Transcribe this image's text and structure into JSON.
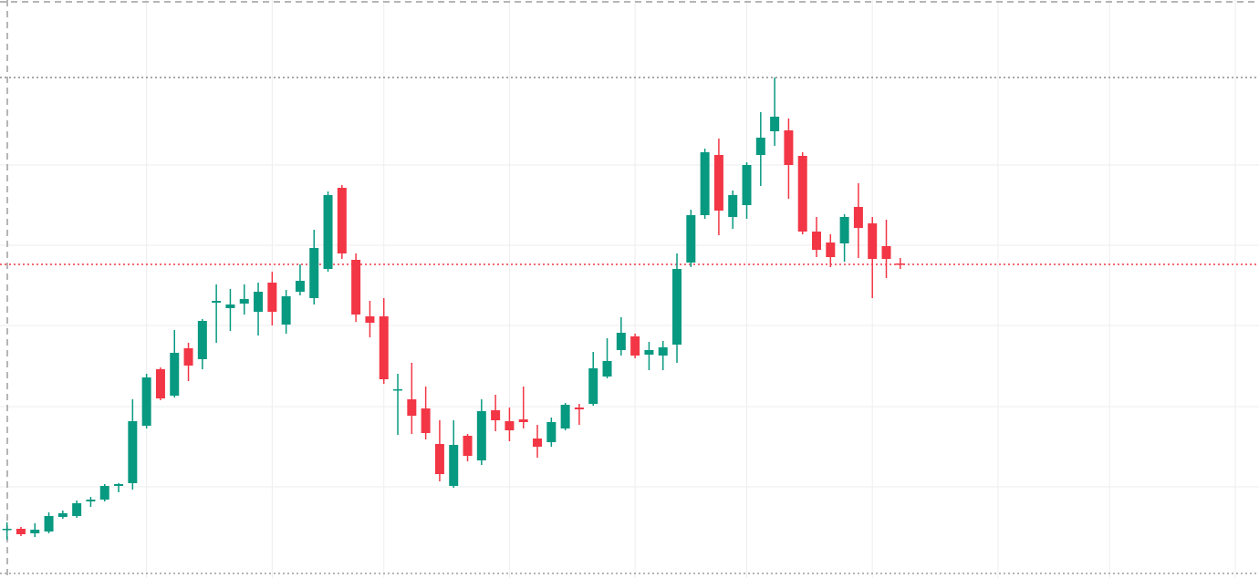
{
  "chart_data": {
    "type": "candlestick",
    "up_color": "#089981",
    "down_color": "#f23645",
    "open": [
      54,
      54,
      49,
      51,
      67,
      68,
      84,
      86,
      101,
      104,
      167,
      229,
      200,
      252,
      240,
      302,
      296,
      301,
      292,
      324,
      278,
      314,
      307,
      339,
      428,
      349,
      287,
      287,
      207,
      196,
      186,
      147,
      101,
      156,
      129,
      184,
      172,
      174,
      153,
      149,
      164,
      187,
      191,
      221,
      250,
      265,
      245,
      244,
      256,
      346,
      398,
      464,
      396,
      409,
      464,
      490,
      491,
      463,
      380,
      368,
      367,
      407,
      389,
      364,
      345
    ],
    "high": [
      61,
      56,
      60,
      72,
      74,
      85,
      89,
      103,
      104,
      196,
      224,
      231,
      272,
      258,
      284,
      322,
      317,
      322,
      324,
      336,
      316,
      344,
      382,
      424,
      431,
      356,
      304,
      307,
      224,
      236,
      210,
      173,
      173,
      158,
      196,
      201,
      187,
      210,
      168,
      176,
      192,
      191,
      248,
      263,
      286,
      268,
      259,
      260,
      356,
      404,
      471,
      482,
      425,
      456,
      511,
      549,
      504,
      467,
      396,
      377,
      399,
      433,
      396,
      393,
      351
    ],
    "low": [
      42,
      46,
      45,
      49,
      65,
      66,
      78,
      84,
      94,
      97,
      164,
      195,
      198,
      216,
      229,
      258,
      271,
      289,
      266,
      277,
      268,
      310,
      300,
      336,
      350,
      281,
      264,
      213,
      157,
      158,
      152,
      106,
      99,
      128,
      124,
      161,
      150,
      164,
      132,
      144,
      162,
      168,
      189,
      219,
      244,
      241,
      228,
      228,
      236,
      341,
      394,
      376,
      383,
      394,
      430,
      474,
      416,
      377,
      352,
      341,
      347,
      351,
      307,
      329,
      339
    ],
    "close": [
      54,
      48,
      53,
      68,
      71,
      82,
      86,
      101,
      103,
      172,
      220,
      197,
      247,
      233,
      282,
      304,
      300,
      306,
      314,
      292,
      309,
      326,
      362,
      420,
      356,
      289,
      280,
      218,
      207,
      178,
      159,
      114,
      146,
      134,
      183,
      173,
      162,
      171,
      144,
      171,
      190,
      185,
      230,
      238,
      269,
      244,
      250,
      253,
      339,
      398,
      467,
      403,
      420,
      453,
      483,
      506,
      453,
      380,
      360,
      352,
      396,
      384,
      350,
      350,
      344
    ],
    "ylim": [
      0,
      634
    ],
    "yticks": [
      100,
      188,
      277,
      365,
      453
    ],
    "xlim": [
      -0.5,
      89.7
    ],
    "xticks": [
      10,
      19,
      27,
      36,
      45,
      53,
      62,
      71,
      79,
      88
    ],
    "grid": true
  }
}
